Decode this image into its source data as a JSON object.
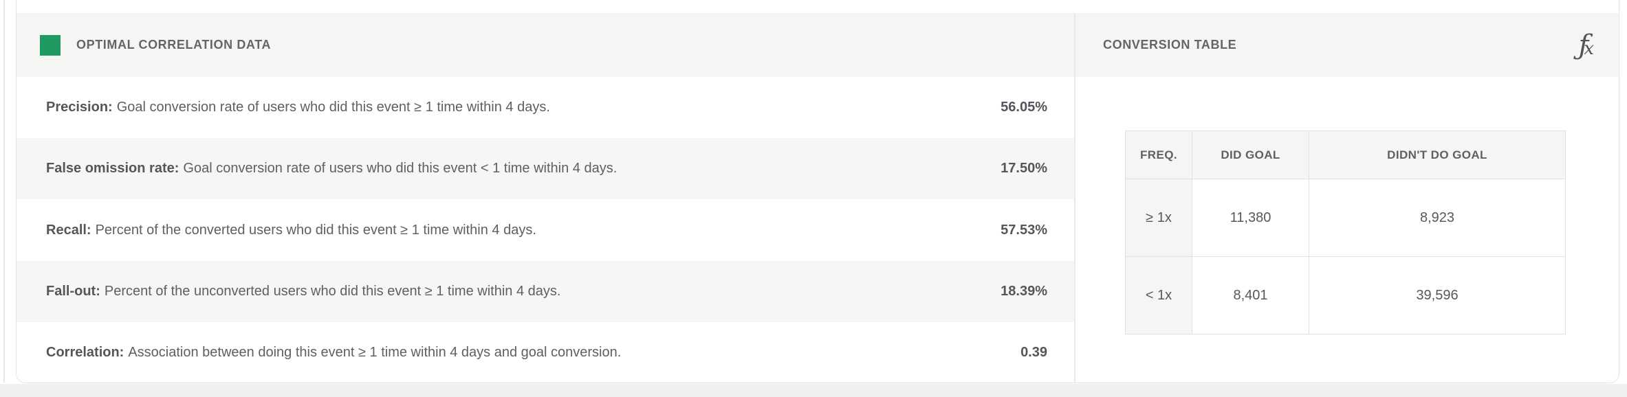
{
  "colors": {
    "legend_green": "#1f9b62",
    "header_band_bg": "#f5f5f4",
    "alt_row_bg": "#f6f6f5",
    "text_primary": "#53565a",
    "text_secondary": "#5c5f63",
    "page_bg": "#f0f0ef",
    "border": "#e3e3e2"
  },
  "left_panel": {
    "title": "OPTIMAL CORRELATION DATA",
    "rows": [
      {
        "label": "Precision:",
        "description": "Goal conversion rate of users who did this event ≥ 1 time within 4 days.",
        "value": "56.05%"
      },
      {
        "label": "False omission rate:",
        "description": "Goal conversion rate of users who did this event < 1 time within 4 days.",
        "value": "17.50%"
      },
      {
        "label": "Recall:",
        "description": "Percent of the converted users who did this event ≥ 1 time within 4 days.",
        "value": "57.53%"
      },
      {
        "label": "Fall-out:",
        "description": "Percent of the unconverted users who did this event ≥ 1 time within 4 days.",
        "value": "18.39%"
      },
      {
        "label": "Correlation:",
        "description": "Association between doing this event ≥ 1 time within 4 days and goal conversion.",
        "value": "0.39"
      }
    ]
  },
  "right_panel": {
    "title": "CONVERSION TABLE",
    "fx_icon_f": "ƒ",
    "fx_icon_x": "x",
    "table": {
      "headers": [
        "FREQ.",
        "DID GOAL",
        "DIDN'T DO GOAL"
      ],
      "rows": [
        {
          "freq": "≥ 1x",
          "did_goal": "11,380",
          "didnt_do_goal": "8,923"
        },
        {
          "freq": "< 1x",
          "did_goal": "8,401",
          "didnt_do_goal": "39,596"
        }
      ]
    }
  }
}
